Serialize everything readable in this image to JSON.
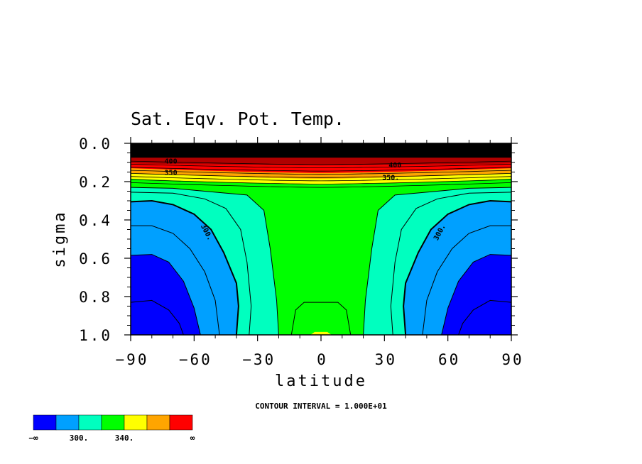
{
  "chart_data": {
    "type": "contour",
    "title": "Sat. Eqv. Pot. Temp.",
    "xlabel": "latitude",
    "ylabel": "sigma",
    "xlim": [
      -90,
      90
    ],
    "ylim": [
      1.0,
      0.0
    ],
    "x_ticks": [
      -90,
      -60,
      -30,
      0,
      30,
      60,
      90
    ],
    "x_tick_labels": [
      "−90",
      "−60",
      "−30",
      "0",
      "30",
      "60",
      "90"
    ],
    "y_ticks": [
      0.0,
      0.2,
      0.4,
      0.6,
      0.8,
      1.0
    ],
    "y_tick_labels": [
      "0.0",
      "0.2",
      "0.4",
      "0.6",
      "0.8",
      "1.0"
    ],
    "contour_interval_text": "CONTOUR INTERVAL = 1.000E+01",
    "contour_interval": 10,
    "contour_labels": [
      {
        "text": "300.",
        "lat": -55,
        "sigma": 0.47
      },
      {
        "text": "300.",
        "lat": 57,
        "sigma": 0.47
      },
      {
        "text": "350",
        "lat": -71,
        "sigma": 0.165
      },
      {
        "text": "350.",
        "lat": 33,
        "sigma": 0.19
      },
      {
        "text": "400",
        "lat": -71,
        "sigma": 0.105
      },
      {
        "text": "400",
        "lat": 35,
        "sigma": 0.125
      }
    ],
    "colorbar": {
      "colors": [
        "#0000ff",
        "#00a0ff",
        "#00ffbf",
        "#00ff00",
        "#ffff00",
        "#ffa500",
        "#ff0000"
      ],
      "labels": [
        "−∞",
        "300.",
        "340.",
        "∞"
      ]
    },
    "field_colors": {
      "black": "#000000",
      "dark_red": "#b00000"
    }
  }
}
